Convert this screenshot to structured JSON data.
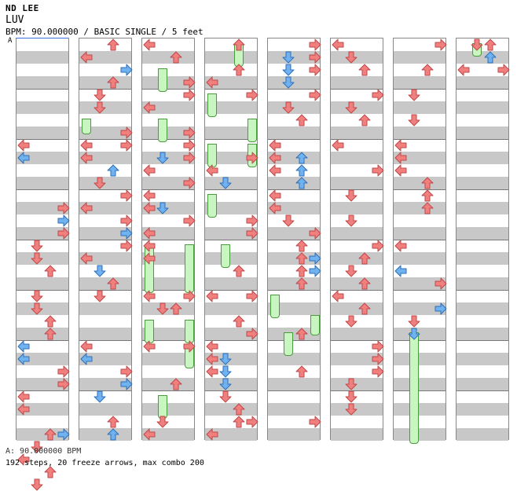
{
  "header": {
    "artist": "ND LEE",
    "title": "LUV",
    "info": "BPM: 90.000000 / BASIC SINGLE / 5 feet"
  },
  "bpm_marker": "A",
  "footer": {
    "bpm_line": "A: 90.000000 BPM",
    "stats": "192 steps, 20 freeze arrows, max combo 200"
  },
  "colors": {
    "red_arrow": "#f08080",
    "blue_arrow": "#6fb2f0",
    "freeze_fill": "#c8f5c0",
    "band": "#c8c8c8"
  },
  "columns": [
    {
      "arrows": [
        {
          "dir": "left",
          "beat": 2.0,
          "c": "r"
        },
        {
          "dir": "left",
          "beat": 2.25,
          "c": "b"
        },
        {
          "dir": "right",
          "beat": 3.25,
          "c": "r"
        },
        {
          "dir": "right",
          "beat": 3.5,
          "c": "b"
        },
        {
          "dir": "right",
          "beat": 3.75,
          "c": "r"
        },
        {
          "dir": "down",
          "beat": 4.0,
          "c": "r"
        },
        {
          "dir": "down",
          "beat": 4.25,
          "c": "r"
        },
        {
          "dir": "up",
          "beat": 4.5,
          "c": "r"
        },
        {
          "dir": "down",
          "beat": 5.0,
          "c": "r"
        },
        {
          "dir": "down",
          "beat": 5.25,
          "c": "r"
        },
        {
          "dir": "up",
          "beat": 5.5,
          "c": "r"
        },
        {
          "dir": "up",
          "beat": 5.75,
          "c": "r"
        },
        {
          "dir": "left",
          "beat": 6.0,
          "c": "b"
        },
        {
          "dir": "left",
          "beat": 6.25,
          "c": "b"
        },
        {
          "dir": "right",
          "beat": 6.5,
          "c": "r"
        },
        {
          "dir": "right",
          "beat": 6.75,
          "c": "r"
        },
        {
          "dir": "left",
          "beat": 7.0,
          "c": "r"
        },
        {
          "dir": "left",
          "beat": 7.25,
          "c": "r"
        },
        {
          "dir": "up",
          "beat": 7.75,
          "c": "r"
        },
        {
          "dir": "right",
          "beat": 7.75,
          "c": "b"
        },
        {
          "dir": "down",
          "beat": 8.0,
          "c": "r"
        },
        {
          "dir": "left",
          "beat": 8.25,
          "c": "r"
        },
        {
          "dir": "up",
          "beat": 8.5,
          "c": "r"
        },
        {
          "dir": "down",
          "beat": 8.75,
          "c": "r"
        }
      ],
      "freezes": []
    },
    {
      "arrows": [
        {
          "dir": "up",
          "beat": 0.0,
          "c": "r"
        },
        {
          "dir": "left",
          "beat": 0.25,
          "c": "r"
        },
        {
          "dir": "right",
          "beat": 0.5,
          "c": "b"
        },
        {
          "dir": "up",
          "beat": 0.75,
          "c": "r"
        },
        {
          "dir": "down",
          "beat": 1.0,
          "c": "r"
        },
        {
          "dir": "down",
          "beat": 1.25,
          "c": "r"
        },
        {
          "dir": "right",
          "beat": 1.75,
          "c": "r"
        },
        {
          "dir": "left",
          "beat": 2.0,
          "c": "r"
        },
        {
          "dir": "right",
          "beat": 2.0,
          "c": "r"
        },
        {
          "dir": "left",
          "beat": 2.25,
          "c": "r"
        },
        {
          "dir": "up",
          "beat": 2.5,
          "c": "b"
        },
        {
          "dir": "down",
          "beat": 2.75,
          "c": "r"
        },
        {
          "dir": "right",
          "beat": 3.0,
          "c": "r"
        },
        {
          "dir": "left",
          "beat": 3.25,
          "c": "r"
        },
        {
          "dir": "right",
          "beat": 3.5,
          "c": "r"
        },
        {
          "dir": "right",
          "beat": 3.75,
          "c": "b"
        },
        {
          "dir": "right",
          "beat": 4.0,
          "c": "r"
        },
        {
          "dir": "left",
          "beat": 4.25,
          "c": "r"
        },
        {
          "dir": "down",
          "beat": 4.5,
          "c": "b"
        },
        {
          "dir": "up",
          "beat": 4.75,
          "c": "r"
        },
        {
          "dir": "down",
          "beat": 5.0,
          "c": "r"
        },
        {
          "dir": "left",
          "beat": 6.0,
          "c": "r"
        },
        {
          "dir": "left",
          "beat": 6.25,
          "c": "b"
        },
        {
          "dir": "right",
          "beat": 6.5,
          "c": "r"
        },
        {
          "dir": "right",
          "beat": 6.75,
          "c": "b"
        },
        {
          "dir": "down",
          "beat": 7.0,
          "c": "b"
        },
        {
          "dir": "up",
          "beat": 7.5,
          "c": "r"
        },
        {
          "dir": "up",
          "beat": 7.75,
          "c": "b"
        }
      ],
      "freezes": [
        {
          "lane": 0,
          "start": 1.5,
          "end": 1.75
        }
      ]
    },
    {
      "arrows": [
        {
          "dir": "left",
          "beat": 0.0,
          "c": "r"
        },
        {
          "dir": "up",
          "beat": 0.25,
          "c": "r"
        },
        {
          "dir": "right",
          "beat": 0.75,
          "c": "r"
        },
        {
          "dir": "right",
          "beat": 1.0,
          "c": "r"
        },
        {
          "dir": "left",
          "beat": 1.25,
          "c": "r"
        },
        {
          "dir": "right",
          "beat": 1.75,
          "c": "r"
        },
        {
          "dir": "right",
          "beat": 2.0,
          "c": "r"
        },
        {
          "dir": "down",
          "beat": 2.25,
          "c": "b"
        },
        {
          "dir": "right",
          "beat": 2.25,
          "c": "r"
        },
        {
          "dir": "left",
          "beat": 2.5,
          "c": "r"
        },
        {
          "dir": "right",
          "beat": 2.75,
          "c": "r"
        },
        {
          "dir": "left",
          "beat": 3.0,
          "c": "r"
        },
        {
          "dir": "down",
          "beat": 3.25,
          "c": "b"
        },
        {
          "dir": "left",
          "beat": 3.25,
          "c": "r"
        },
        {
          "dir": "right",
          "beat": 3.5,
          "c": "r"
        },
        {
          "dir": "left",
          "beat": 3.75,
          "c": "r"
        },
        {
          "dir": "left",
          "beat": 4.0,
          "c": "r"
        },
        {
          "dir": "left",
          "beat": 4.25,
          "c": "r"
        },
        {
          "dir": "left",
          "beat": 5.0,
          "c": "r"
        },
        {
          "dir": "right",
          "beat": 5.0,
          "c": "r"
        },
        {
          "dir": "down",
          "beat": 5.25,
          "c": "r"
        },
        {
          "dir": "up",
          "beat": 5.25,
          "c": "r"
        },
        {
          "dir": "left",
          "beat": 6.0,
          "c": "r"
        },
        {
          "dir": "right",
          "beat": 6.0,
          "c": "r"
        },
        {
          "dir": "up",
          "beat": 6.75,
          "c": "r"
        },
        {
          "dir": "down",
          "beat": 7.5,
          "c": "r"
        },
        {
          "dir": "left",
          "beat": 7.75,
          "c": "r"
        }
      ],
      "freezes": [
        {
          "lane": 1,
          "start": 0.5,
          "end": 0.9
        },
        {
          "lane": 1,
          "start": 1.5,
          "end": 1.9
        },
        {
          "lane": 0,
          "start": 4.0,
          "end": 4.9
        },
        {
          "lane": 3,
          "start": 4.0,
          "end": 4.9
        },
        {
          "lane": 0,
          "start": 5.5,
          "end": 5.9
        },
        {
          "lane": 3,
          "start": 5.5,
          "end": 5.9
        },
        {
          "lane": 3,
          "start": 6.0,
          "end": 6.4
        },
        {
          "lane": 1,
          "start": 7.0,
          "end": 7.4
        }
      ]
    },
    {
      "arrows": [
        {
          "dir": "up",
          "beat": 0.0,
          "c": "r"
        },
        {
          "dir": "up",
          "beat": 0.5,
          "c": "r"
        },
        {
          "dir": "left",
          "beat": 0.75,
          "c": "r"
        },
        {
          "dir": "right",
          "beat": 1.0,
          "c": "r"
        },
        {
          "dir": "right",
          "beat": 2.25,
          "c": "r"
        },
        {
          "dir": "left",
          "beat": 2.5,
          "c": "r"
        },
        {
          "dir": "down",
          "beat": 2.75,
          "c": "b"
        },
        {
          "dir": "right",
          "beat": 3.5,
          "c": "r"
        },
        {
          "dir": "right",
          "beat": 3.75,
          "c": "r"
        },
        {
          "dir": "up",
          "beat": 4.5,
          "c": "r"
        },
        {
          "dir": "left",
          "beat": 5.0,
          "c": "r"
        },
        {
          "dir": "right",
          "beat": 5.0,
          "c": "r"
        },
        {
          "dir": "up",
          "beat": 5.5,
          "c": "r"
        },
        {
          "dir": "right",
          "beat": 5.75,
          "c": "r"
        },
        {
          "dir": "left",
          "beat": 6.0,
          "c": "r"
        },
        {
          "dir": "down",
          "beat": 6.25,
          "c": "b"
        },
        {
          "dir": "left",
          "beat": 6.25,
          "c": "r"
        },
        {
          "dir": "down",
          "beat": 6.5,
          "c": "b"
        },
        {
          "dir": "left",
          "beat": 6.5,
          "c": "r"
        },
        {
          "dir": "down",
          "beat": 6.75,
          "c": "b"
        },
        {
          "dir": "down",
          "beat": 7.0,
          "c": "r"
        },
        {
          "dir": "up",
          "beat": 7.25,
          "c": "r"
        },
        {
          "dir": "up",
          "beat": 7.5,
          "c": "r"
        },
        {
          "dir": "right",
          "beat": 7.5,
          "c": "r"
        },
        {
          "dir": "left",
          "beat": 7.75,
          "c": "r"
        }
      ],
      "freezes": [
        {
          "lane": 2,
          "start": 0.0,
          "end": 0.4
        },
        {
          "lane": 0,
          "start": 1.0,
          "end": 1.4
        },
        {
          "lane": 3,
          "start": 1.5,
          "end": 1.9
        },
        {
          "lane": 0,
          "start": 2.0,
          "end": 2.4
        },
        {
          "lane": 3,
          "start": 2.0,
          "end": 2.4
        },
        {
          "lane": 0,
          "start": 3.0,
          "end": 3.4
        },
        {
          "lane": 1,
          "start": 4.0,
          "end": 4.4
        }
      ]
    },
    {
      "arrows": [
        {
          "dir": "right",
          "beat": 0.0,
          "c": "r"
        },
        {
          "dir": "down",
          "beat": 0.25,
          "c": "b"
        },
        {
          "dir": "right",
          "beat": 0.25,
          "c": "r"
        },
        {
          "dir": "down",
          "beat": 0.5,
          "c": "b"
        },
        {
          "dir": "right",
          "beat": 0.5,
          "c": "r"
        },
        {
          "dir": "down",
          "beat": 0.75,
          "c": "b"
        },
        {
          "dir": "right",
          "beat": 1.0,
          "c": "r"
        },
        {
          "dir": "down",
          "beat": 1.25,
          "c": "r"
        },
        {
          "dir": "up",
          "beat": 1.5,
          "c": "r"
        },
        {
          "dir": "left",
          "beat": 2.0,
          "c": "r"
        },
        {
          "dir": "up",
          "beat": 2.25,
          "c": "b"
        },
        {
          "dir": "left",
          "beat": 2.25,
          "c": "r"
        },
        {
          "dir": "up",
          "beat": 2.5,
          "c": "b"
        },
        {
          "dir": "left",
          "beat": 2.5,
          "c": "r"
        },
        {
          "dir": "up",
          "beat": 2.75,
          "c": "b"
        },
        {
          "dir": "left",
          "beat": 3.0,
          "c": "r"
        },
        {
          "dir": "left",
          "beat": 3.25,
          "c": "r"
        },
        {
          "dir": "down",
          "beat": 3.5,
          "c": "r"
        },
        {
          "dir": "right",
          "beat": 3.75,
          "c": "r"
        },
        {
          "dir": "up",
          "beat": 4.0,
          "c": "r"
        },
        {
          "dir": "up",
          "beat": 4.25,
          "c": "r"
        },
        {
          "dir": "right",
          "beat": 4.25,
          "c": "b"
        },
        {
          "dir": "up",
          "beat": 4.5,
          "c": "r"
        },
        {
          "dir": "right",
          "beat": 4.5,
          "c": "b"
        },
        {
          "dir": "up",
          "beat": 4.75,
          "c": "r"
        },
        {
          "dir": "up",
          "beat": 5.75,
          "c": "r"
        },
        {
          "dir": "up",
          "beat": 6.5,
          "c": "r"
        },
        {
          "dir": "right",
          "beat": 7.5,
          "c": "r"
        }
      ],
      "freezes": [
        {
          "lane": 0,
          "start": 5.0,
          "end": 5.4
        },
        {
          "lane": 3,
          "start": 5.4,
          "end": 5.75
        },
        {
          "lane": 1,
          "start": 5.75,
          "end": 6.15
        }
      ]
    },
    {
      "arrows": [
        {
          "dir": "left",
          "beat": 0.0,
          "c": "r"
        },
        {
          "dir": "down",
          "beat": 0.25,
          "c": "r"
        },
        {
          "dir": "up",
          "beat": 0.5,
          "c": "r"
        },
        {
          "dir": "right",
          "beat": 1.0,
          "c": "r"
        },
        {
          "dir": "down",
          "beat": 1.25,
          "c": "r"
        },
        {
          "dir": "up",
          "beat": 1.5,
          "c": "r"
        },
        {
          "dir": "left",
          "beat": 2.0,
          "c": "r"
        },
        {
          "dir": "right",
          "beat": 2.5,
          "c": "r"
        },
        {
          "dir": "down",
          "beat": 3.0,
          "c": "r"
        },
        {
          "dir": "down",
          "beat": 3.5,
          "c": "r"
        },
        {
          "dir": "right",
          "beat": 4.0,
          "c": "r"
        },
        {
          "dir": "up",
          "beat": 4.25,
          "c": "r"
        },
        {
          "dir": "down",
          "beat": 4.5,
          "c": "r"
        },
        {
          "dir": "up",
          "beat": 4.75,
          "c": "r"
        },
        {
          "dir": "left",
          "beat": 5.0,
          "c": "r"
        },
        {
          "dir": "up",
          "beat": 5.25,
          "c": "r"
        },
        {
          "dir": "down",
          "beat": 5.5,
          "c": "r"
        },
        {
          "dir": "right",
          "beat": 6.0,
          "c": "r"
        },
        {
          "dir": "right",
          "beat": 6.25,
          "c": "r"
        },
        {
          "dir": "right",
          "beat": 6.5,
          "c": "r"
        },
        {
          "dir": "down",
          "beat": 6.75,
          "c": "r"
        },
        {
          "dir": "down",
          "beat": 7.0,
          "c": "r"
        },
        {
          "dir": "down",
          "beat": 7.25,
          "c": "r"
        }
      ],
      "freezes": []
    },
    {
      "arrows": [
        {
          "dir": "right",
          "beat": 0.0,
          "c": "r"
        },
        {
          "dir": "up",
          "beat": 0.5,
          "c": "r"
        },
        {
          "dir": "down",
          "beat": 1.0,
          "c": "r"
        },
        {
          "dir": "down",
          "beat": 1.5,
          "c": "r"
        },
        {
          "dir": "left",
          "beat": 2.0,
          "c": "r"
        },
        {
          "dir": "left",
          "beat": 2.25,
          "c": "r"
        },
        {
          "dir": "left",
          "beat": 2.5,
          "c": "r"
        },
        {
          "dir": "up",
          "beat": 2.75,
          "c": "r"
        },
        {
          "dir": "up",
          "beat": 3.0,
          "c": "r"
        },
        {
          "dir": "up",
          "beat": 3.25,
          "c": "r"
        },
        {
          "dir": "left",
          "beat": 4.0,
          "c": "r"
        },
        {
          "dir": "left",
          "beat": 4.5,
          "c": "b"
        },
        {
          "dir": "right",
          "beat": 4.75,
          "c": "r"
        },
        {
          "dir": "right",
          "beat": 5.25,
          "c": "b"
        },
        {
          "dir": "down",
          "beat": 5.5,
          "c": "r"
        },
        {
          "dir": "down",
          "beat": 5.75,
          "c": "b"
        }
      ],
      "freezes": [
        {
          "lane": 1,
          "start": 5.75,
          "end": 7.9
        }
      ]
    },
    {
      "arrows": [
        {
          "dir": "up",
          "beat": 0.0,
          "c": "r"
        },
        {
          "dir": "down",
          "beat": 0.0,
          "c": "r"
        },
        {
          "dir": "up",
          "beat": 0.25,
          "c": "b"
        },
        {
          "dir": "left",
          "beat": 0.5,
          "c": "r"
        },
        {
          "dir": "right",
          "beat": 0.5,
          "c": "r"
        }
      ],
      "freezes": [
        {
          "lane": 1,
          "start": 0.0,
          "end": 0.2
        }
      ]
    }
  ]
}
